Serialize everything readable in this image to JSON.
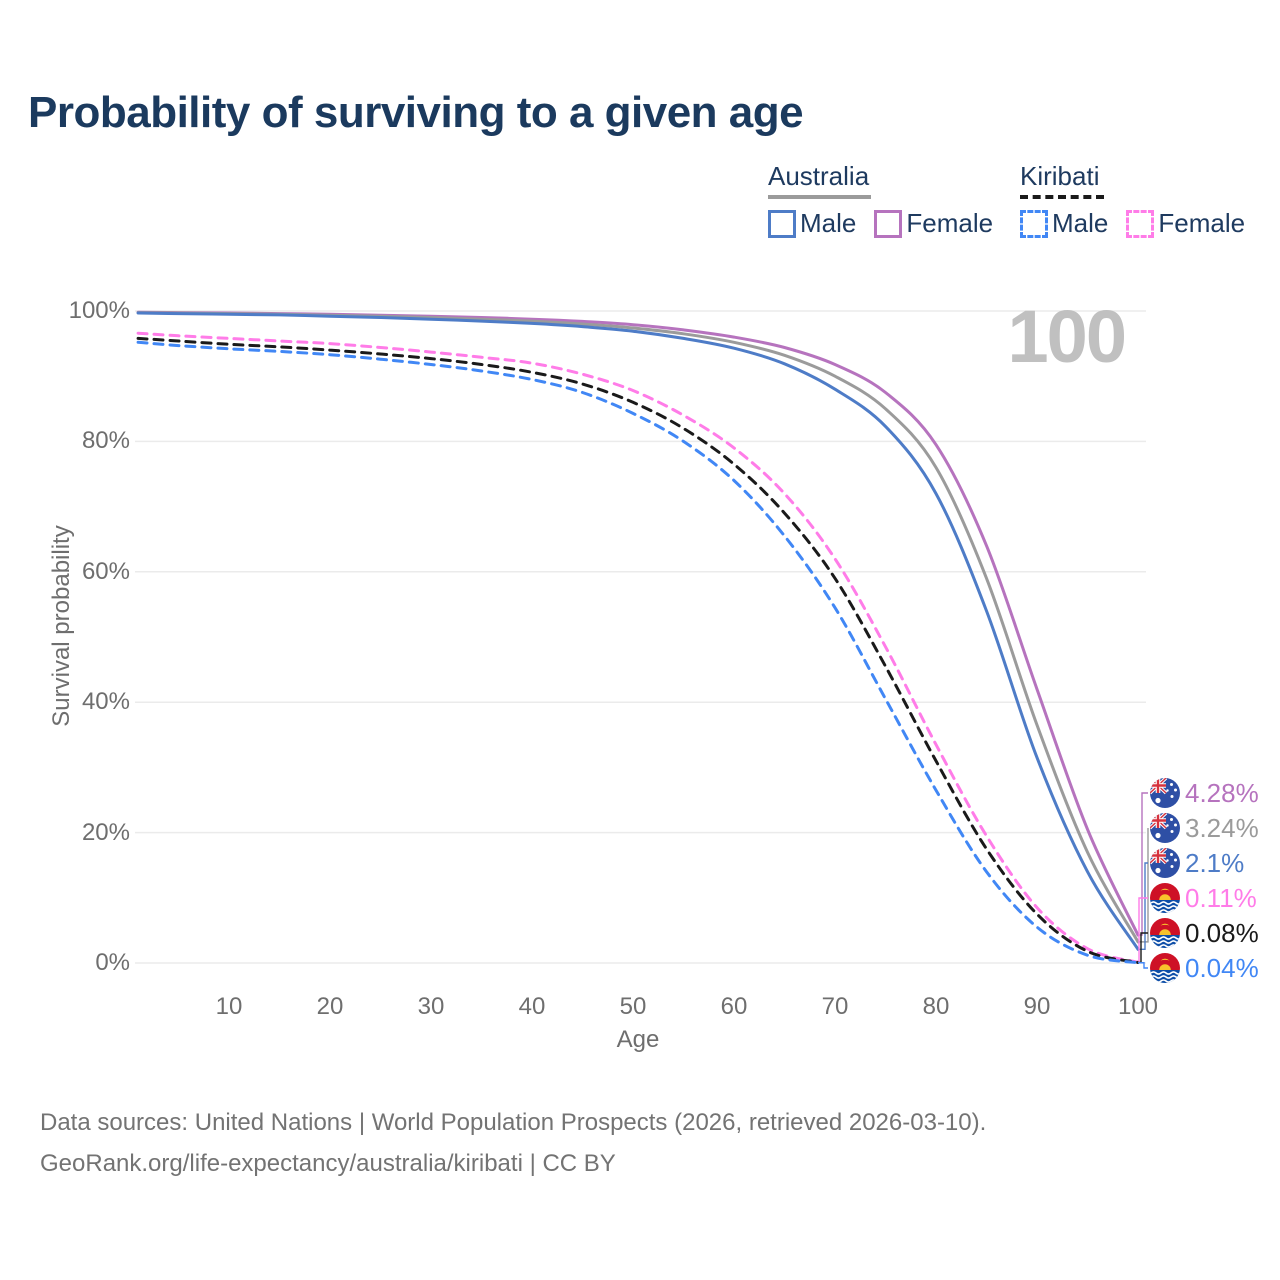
{
  "title": "Probability of surviving to a given age",
  "legend": {
    "groups": [
      {
        "label": "Australia",
        "line_style": "solid",
        "underline_color": "#9B9B9B",
        "items": [
          {
            "label": "Male",
            "color": "#4E7CC7"
          },
          {
            "label": "Female",
            "color": "#B673BE"
          }
        ]
      },
      {
        "label": "Kiribati",
        "line_style": "dashed",
        "underline_color": "#1A1A1A",
        "items": [
          {
            "label": "Male",
            "color": "#4187F5"
          },
          {
            "label": "Female",
            "color": "#FF7CE8"
          }
        ]
      }
    ]
  },
  "chart_data": {
    "type": "line",
    "title": "Probability of surviving to a given age",
    "xlabel": "Age",
    "ylabel": "Survival probability",
    "xlim": [
      0,
      100
    ],
    "ylim": [
      0,
      100
    ],
    "x_ticks": [
      10,
      20,
      30,
      40,
      50,
      60,
      70,
      80,
      90,
      100
    ],
    "y_tick_labels": [
      "0%",
      "20%",
      "40%",
      "60%",
      "80%",
      "100%"
    ],
    "grid": "horizontal",
    "legend_position": "top-right",
    "watermark": "100",
    "series": [
      {
        "name": "Australia Female",
        "color": "#B673BE",
        "dash": false,
        "flag": "australia",
        "end_label": "4.28%",
        "points": [
          [
            1,
            99.8
          ],
          [
            5,
            99.75
          ],
          [
            10,
            99.7
          ],
          [
            15,
            99.6
          ],
          [
            20,
            99.5
          ],
          [
            25,
            99.35
          ],
          [
            30,
            99.2
          ],
          [
            35,
            99.0
          ],
          [
            40,
            98.75
          ],
          [
            45,
            98.4
          ],
          [
            50,
            97.9
          ],
          [
            55,
            97.1
          ],
          [
            60,
            96.0
          ],
          [
            65,
            94.4
          ],
          [
            70,
            91.8
          ],
          [
            75,
            87.5
          ],
          [
            80,
            79.5
          ],
          [
            85,
            64
          ],
          [
            90,
            42
          ],
          [
            95,
            20.5
          ],
          [
            100,
            4.28
          ]
        ]
      },
      {
        "name": "Australia both sexes",
        "color": "#9B9B9B",
        "dash": false,
        "flag": "australia",
        "end_label": "3.24%",
        "points": [
          [
            1,
            99.75
          ],
          [
            5,
            99.7
          ],
          [
            10,
            99.6
          ],
          [
            15,
            99.5
          ],
          [
            20,
            99.35
          ],
          [
            25,
            99.2
          ],
          [
            30,
            99.0
          ],
          [
            35,
            98.75
          ],
          [
            40,
            98.45
          ],
          [
            45,
            98.0
          ],
          [
            50,
            97.4
          ],
          [
            55,
            96.5
          ],
          [
            60,
            95.2
          ],
          [
            65,
            93.2
          ],
          [
            70,
            90.0
          ],
          [
            75,
            85.0
          ],
          [
            80,
            76.0
          ],
          [
            85,
            59
          ],
          [
            90,
            36.5
          ],
          [
            95,
            17
          ],
          [
            100,
            3.24
          ]
        ]
      },
      {
        "name": "Australia Male",
        "color": "#4E7CC7",
        "dash": false,
        "flag": "australia",
        "end_label": "2.1%",
        "points": [
          [
            1,
            99.7
          ],
          [
            5,
            99.6
          ],
          [
            10,
            99.5
          ],
          [
            15,
            99.4
          ],
          [
            20,
            99.2
          ],
          [
            25,
            99.0
          ],
          [
            30,
            98.75
          ],
          [
            35,
            98.45
          ],
          [
            40,
            98.1
          ],
          [
            45,
            97.6
          ],
          [
            50,
            96.9
          ],
          [
            55,
            95.8
          ],
          [
            60,
            94.3
          ],
          [
            65,
            91.9
          ],
          [
            70,
            88.0
          ],
          [
            75,
            82.3
          ],
          [
            80,
            72.0
          ],
          [
            85,
            54
          ],
          [
            90,
            31.5
          ],
          [
            95,
            14
          ],
          [
            100,
            2.1
          ]
        ]
      },
      {
        "name": "Kiribati Female",
        "color": "#FF7CE8",
        "dash": true,
        "flag": "kiribati",
        "end_label": "0.11%",
        "points": [
          [
            1,
            96.6
          ],
          [
            5,
            96.2
          ],
          [
            10,
            95.8
          ],
          [
            15,
            95.4
          ],
          [
            20,
            95.0
          ],
          [
            25,
            94.4
          ],
          [
            30,
            93.7
          ],
          [
            35,
            92.9
          ],
          [
            40,
            92.0
          ],
          [
            45,
            90.3
          ],
          [
            50,
            87.8
          ],
          [
            55,
            84.0
          ],
          [
            60,
            79.0
          ],
          [
            65,
            72.0
          ],
          [
            70,
            62.0
          ],
          [
            75,
            48.5
          ],
          [
            80,
            33.5
          ],
          [
            85,
            19.5
          ],
          [
            90,
            8.5
          ],
          [
            95,
            2.2
          ],
          [
            100,
            0.11
          ]
        ]
      },
      {
        "name": "Kiribati both sexes",
        "color": "#1A1A1A",
        "dash": true,
        "flag": "kiribati",
        "end_label": "0.08%",
        "points": [
          [
            1,
            95.8
          ],
          [
            5,
            95.4
          ],
          [
            10,
            94.9
          ],
          [
            15,
            94.5
          ],
          [
            20,
            94.0
          ],
          [
            25,
            93.4
          ],
          [
            30,
            92.7
          ],
          [
            35,
            91.8
          ],
          [
            40,
            90.6
          ],
          [
            45,
            88.8
          ],
          [
            50,
            86.0
          ],
          [
            55,
            82.0
          ],
          [
            60,
            76.5
          ],
          [
            65,
            69.0
          ],
          [
            70,
            59.0
          ],
          [
            75,
            45.5
          ],
          [
            80,
            31.0
          ],
          [
            85,
            17.5
          ],
          [
            90,
            7.5
          ],
          [
            95,
            1.8
          ],
          [
            100,
            0.08
          ]
        ]
      },
      {
        "name": "Kiribati Male",
        "color": "#4187F5",
        "dash": true,
        "flag": "kiribati",
        "end_label": "0.04%",
        "points": [
          [
            1,
            95.2
          ],
          [
            5,
            94.7
          ],
          [
            10,
            94.2
          ],
          [
            15,
            93.8
          ],
          [
            20,
            93.3
          ],
          [
            25,
            92.6
          ],
          [
            30,
            91.8
          ],
          [
            35,
            90.8
          ],
          [
            40,
            89.5
          ],
          [
            45,
            87.5
          ],
          [
            50,
            84.3
          ],
          [
            55,
            80.0
          ],
          [
            60,
            74.0
          ],
          [
            65,
            65.5
          ],
          [
            70,
            54.5
          ],
          [
            75,
            40.5
          ],
          [
            80,
            26.5
          ],
          [
            85,
            14.0
          ],
          [
            90,
            5.5
          ],
          [
            95,
            1.2
          ],
          [
            100,
            0.04
          ]
        ]
      }
    ]
  },
  "footer": {
    "line1": "Data sources: United Nations | World Population Prospects (2026, retrieved 2026-03-10).",
    "line2": "GeoRank.org/life-expectancy/australia/kiribati | CC BY"
  }
}
